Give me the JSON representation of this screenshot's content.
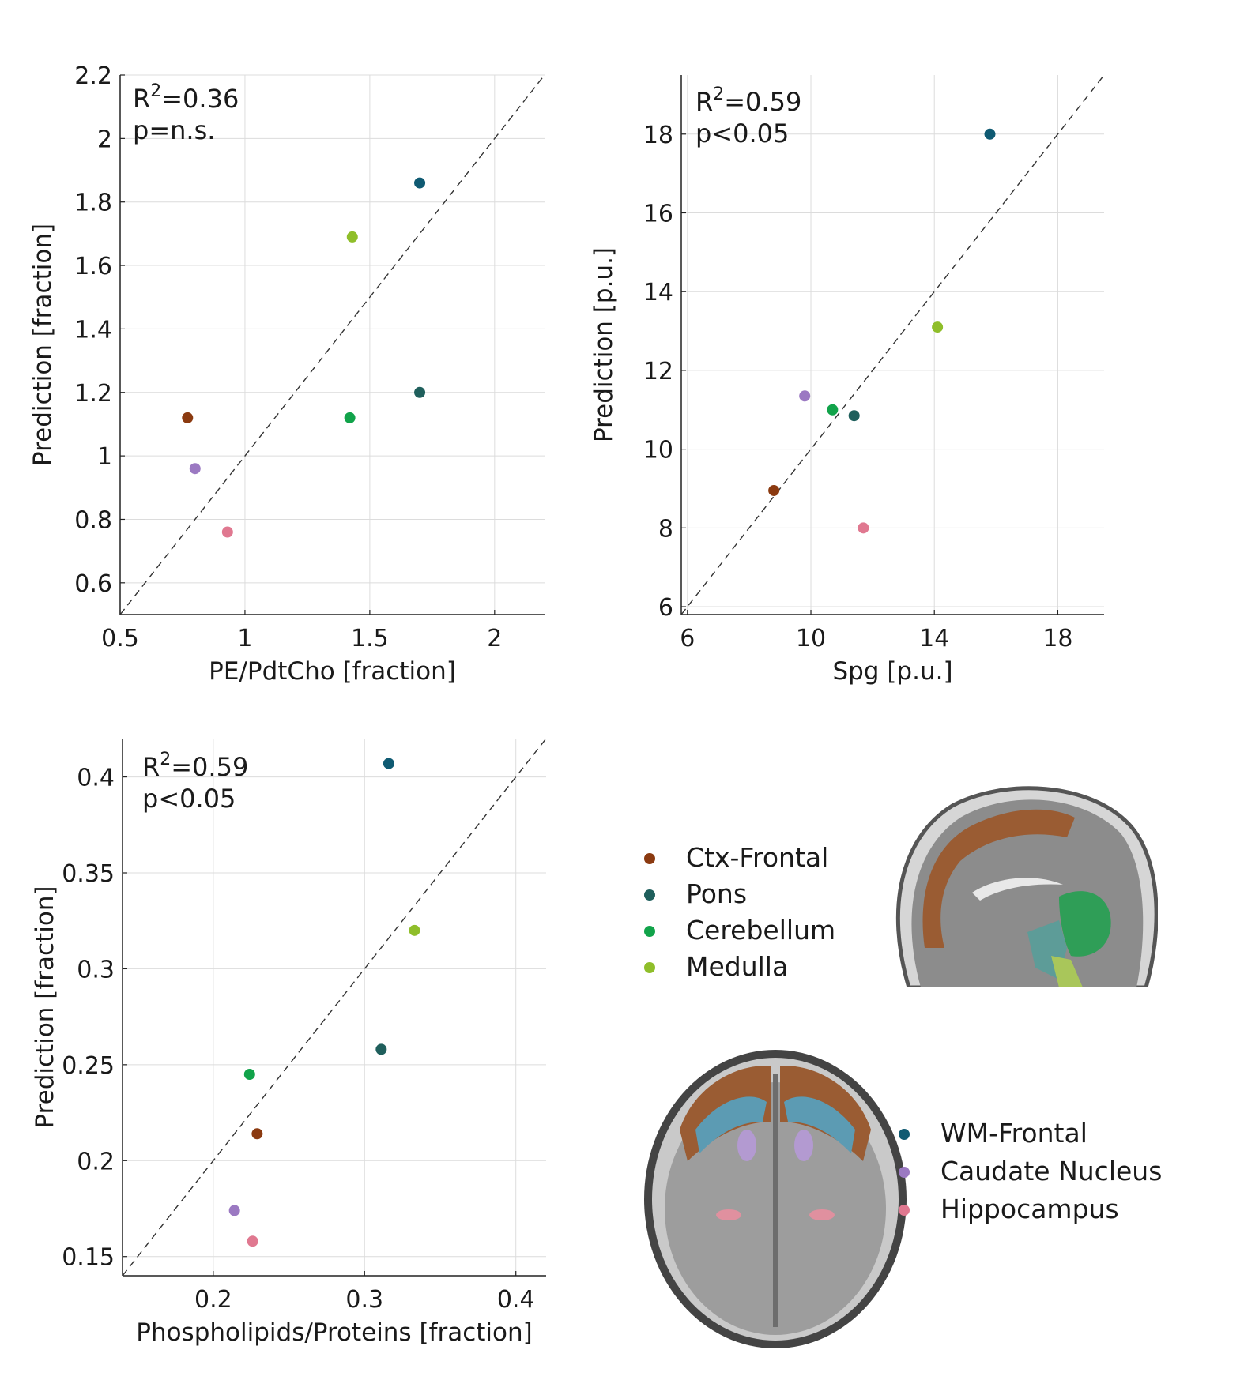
{
  "colors": {
    "Ctx-Frontal": "#8b3a10",
    "Pons": "#1f5f5c",
    "Cerebellum": "#11a34a",
    "Medulla": "#8fbe2a",
    "WM-Frontal": "#0f5a72",
    "Caudate Nucleus": "#9b79c2",
    "Hippocampus": "#e07890"
  },
  "chart_data": [
    {
      "type": "scatter",
      "xlabel": "PE/PdtCho [fraction]",
      "ylabel": "Prediction [fraction]",
      "stat_r": "0.36",
      "stat_p": "p=n.s.",
      "xlim": [
        0.5,
        2.2
      ],
      "ylim": [
        0.5,
        2.2
      ],
      "xticks": [
        0.5,
        1,
        1.5,
        2
      ],
      "xtick_labels": [
        "0.5",
        "1",
        "1.5",
        "2"
      ],
      "yticks": [
        0.6,
        0.8,
        1,
        1.2,
        1.4,
        1.6,
        1.8,
        2,
        2.2
      ],
      "ytick_labels": [
        "0.6",
        "0.8",
        "1",
        "1.2",
        "1.4",
        "1.6",
        "1.8",
        "2",
        "2.2"
      ],
      "grid": true,
      "identity_line": true,
      "points": [
        {
          "region": "WM-Frontal",
          "x": 1.7,
          "y": 1.86
        },
        {
          "region": "Medulla",
          "x": 1.43,
          "y": 1.69
        },
        {
          "region": "Pons",
          "x": 1.7,
          "y": 1.2
        },
        {
          "region": "Cerebellum",
          "x": 1.42,
          "y": 1.12
        },
        {
          "region": "Ctx-Frontal",
          "x": 0.77,
          "y": 1.12
        },
        {
          "region": "Caudate Nucleus",
          "x": 0.8,
          "y": 0.96
        },
        {
          "region": "Hippocampus",
          "x": 0.93,
          "y": 0.76
        }
      ]
    },
    {
      "type": "scatter",
      "xlabel": "Spg [p.u.]",
      "ylabel": "Prediction [p.u.]",
      "stat_r": "0.59",
      "stat_p": "p<0.05",
      "xlim": [
        5.8,
        19.5
      ],
      "ylim": [
        5.8,
        19.5
      ],
      "xticks": [
        6,
        10,
        14,
        18
      ],
      "xtick_labels": [
        "6",
        "10",
        "14",
        "18"
      ],
      "yticks": [
        6,
        8,
        10,
        12,
        14,
        16,
        18
      ],
      "ytick_labels": [
        "6",
        "8",
        "10",
        "12",
        "14",
        "16",
        "18"
      ],
      "grid": true,
      "identity_line": true,
      "points": [
        {
          "region": "WM-Frontal",
          "x": 15.8,
          "y": 18.0
        },
        {
          "region": "Medulla",
          "x": 14.1,
          "y": 13.1
        },
        {
          "region": "Caudate Nucleus",
          "x": 9.8,
          "y": 11.35
        },
        {
          "region": "Cerebellum",
          "x": 10.7,
          "y": 11.0
        },
        {
          "region": "Pons",
          "x": 11.4,
          "y": 10.85
        },
        {
          "region": "Ctx-Frontal",
          "x": 8.8,
          "y": 8.95
        },
        {
          "region": "Hippocampus",
          "x": 11.7,
          "y": 8.0
        }
      ]
    },
    {
      "type": "scatter",
      "xlabel": "Phospholipids/Proteins [fraction]",
      "ylabel": "Prediction [fraction]",
      "stat_r": "0.59",
      "stat_p": "p<0.05",
      "xlim": [
        0.14,
        0.42
      ],
      "ylim": [
        0.14,
        0.42
      ],
      "xticks": [
        0.2,
        0.3,
        0.4
      ],
      "xtick_labels": [
        "0.2",
        "0.3",
        "0.4"
      ],
      "yticks": [
        0.15,
        0.2,
        0.25,
        0.3,
        0.35,
        0.4
      ],
      "ytick_labels": [
        "0.15",
        "0.2",
        "0.25",
        "0.3",
        "0.35",
        "0.4"
      ],
      "grid": true,
      "identity_line": true,
      "points": [
        {
          "region": "WM-Frontal",
          "x": 0.316,
          "y": 0.407
        },
        {
          "region": "Medulla",
          "x": 0.333,
          "y": 0.32
        },
        {
          "region": "Pons",
          "x": 0.311,
          "y": 0.258
        },
        {
          "region": "Cerebellum",
          "x": 0.224,
          "y": 0.245
        },
        {
          "region": "Ctx-Frontal",
          "x": 0.229,
          "y": 0.214
        },
        {
          "region": "Caudate Nucleus",
          "x": 0.214,
          "y": 0.174
        },
        {
          "region": "Hippocampus",
          "x": 0.226,
          "y": 0.158
        }
      ]
    }
  ],
  "legend_top": [
    "Ctx-Frontal",
    "Pons",
    "Cerebellum",
    "Medulla"
  ],
  "legend_bottom": [
    "WM-Frontal",
    "Caudate Nucleus",
    "Hippocampus"
  ]
}
